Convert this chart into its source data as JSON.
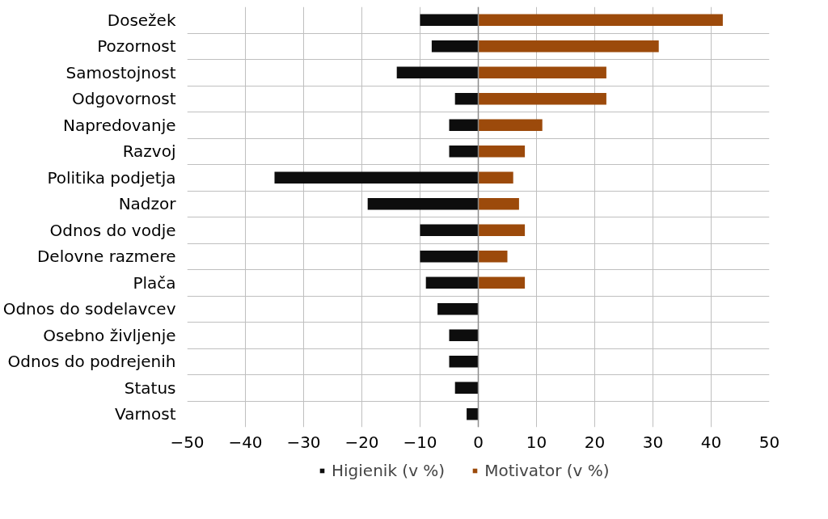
{
  "chart_data": {
    "type": "bar",
    "orientation": "horizontal",
    "stacked": true,
    "categories": [
      "Dosežek",
      "Pozornost",
      "Samostojnost",
      "Odgovornost",
      "Napredovanje",
      "Razvoj",
      "Politika podjetja",
      "Nadzor",
      "Odnos do vodje",
      "Delovne razmere",
      "Plača",
      "Odnos do sodelavcev",
      "Osebno življenje",
      "Odnos do podrejenih",
      "Status",
      "Varnost"
    ],
    "series": [
      {
        "name": "Higienik (v %)",
        "color": "#0d0d0d",
        "values": [
          -10,
          -8,
          -14,
          -4,
          -5,
          -5,
          -35,
          -19,
          -10,
          -10,
          -9,
          -7,
          -5,
          -5,
          -4,
          -2
        ]
      },
      {
        "name": "Motivator (v %)",
        "color": "#9c4a0b",
        "values": [
          42,
          31,
          22,
          22,
          11,
          8,
          6,
          7,
          8,
          5,
          8,
          0,
          0,
          0,
          0,
          0
        ]
      }
    ],
    "xlim": [
      -50,
      50
    ],
    "xticks": [
      -50,
      -40,
      -30,
      -20,
      -10,
      0,
      10,
      20,
      30,
      40,
      50
    ],
    "grid": true,
    "legend": "bottom"
  }
}
